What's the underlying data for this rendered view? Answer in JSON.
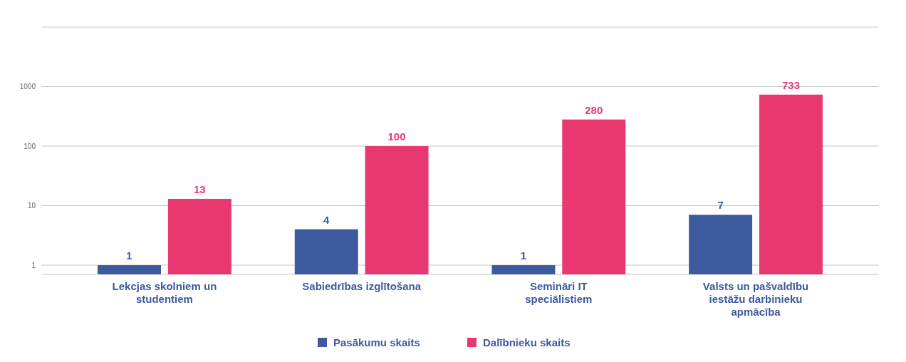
{
  "chart_data": {
    "type": "bar",
    "log": "y",
    "categories": [
      "Lekcjas skolniem un studentiem",
      "Sabiedrības izglītošana",
      "Semināri IT speciālistiem",
      "Valsts un pašvaldību iestāžu darbinieku apmācība"
    ],
    "series": [
      {
        "name": "Pasākumu skaits",
        "color": "#3d5a9e",
        "values": [
          1,
          4,
          1,
          7
        ]
      },
      {
        "name": "Dalībnieku skaits",
        "color": "#e8386f",
        "values": [
          13,
          100,
          280,
          733
        ]
      }
    ],
    "ylim": [
      0.7,
      10000
    ],
    "yticks": [
      1,
      10,
      100,
      1000,
      {
        "value": 10000,
        "label": null
      }
    ],
    "grid": "y",
    "data_labels": true,
    "legend": "bottom"
  }
}
